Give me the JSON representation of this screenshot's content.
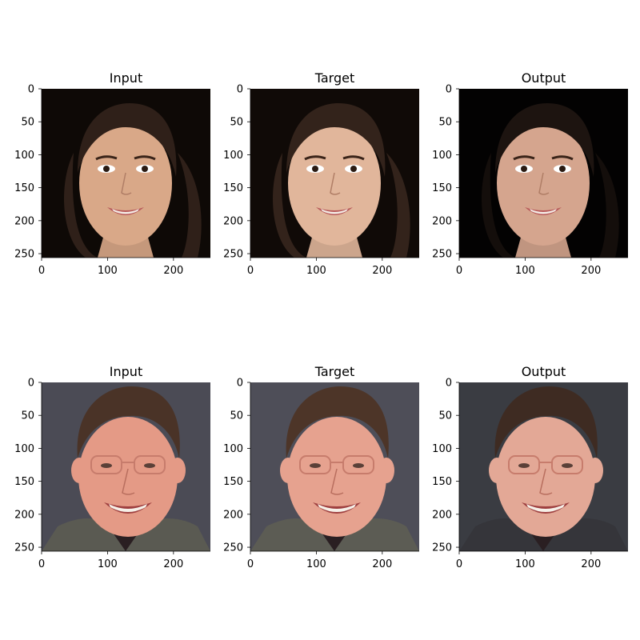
{
  "chart_data": {
    "type": "image-grid",
    "rows": 2,
    "cols": 3,
    "axes": {
      "xlim": [
        0,
        256
      ],
      "ylim": [
        256,
        0
      ],
      "xticks": [
        0,
        100,
        200
      ],
      "yticks": [
        0,
        50,
        100,
        150,
        200,
        250
      ]
    },
    "panels": [
      {
        "title": "Input",
        "subject": "woman-dark-hair",
        "variant": "input",
        "background": "#0e0906",
        "skin": "#d9a888",
        "hair": "#2f2019"
      },
      {
        "title": "Target",
        "subject": "woman-dark-hair",
        "variant": "target",
        "background": "#100a07",
        "skin": "#e1b69b",
        "hair": "#33231b"
      },
      {
        "title": "Output",
        "subject": "woman-dark-hair",
        "variant": "output",
        "background": "#030202",
        "skin": "#d5a58e",
        "hair": "#1d1410"
      },
      {
        "title": "Input",
        "subject": "man-glasses",
        "variant": "input",
        "background": "#4b4b55",
        "skin": "#e49a86",
        "hair": "#4a3327",
        "clothing": "#5a5a52"
      },
      {
        "title": "Target",
        "subject": "man-glasses",
        "variant": "target",
        "background": "#4e4e58",
        "skin": "#e6a28f",
        "hair": "#4d3528",
        "clothing": "#5c5c54"
      },
      {
        "title": "Output",
        "subject": "man-glasses",
        "variant": "output",
        "background": "#3a3c42",
        "skin": "#e3a896",
        "hair": "#3e2b22",
        "clothing": "#35353a"
      }
    ]
  }
}
